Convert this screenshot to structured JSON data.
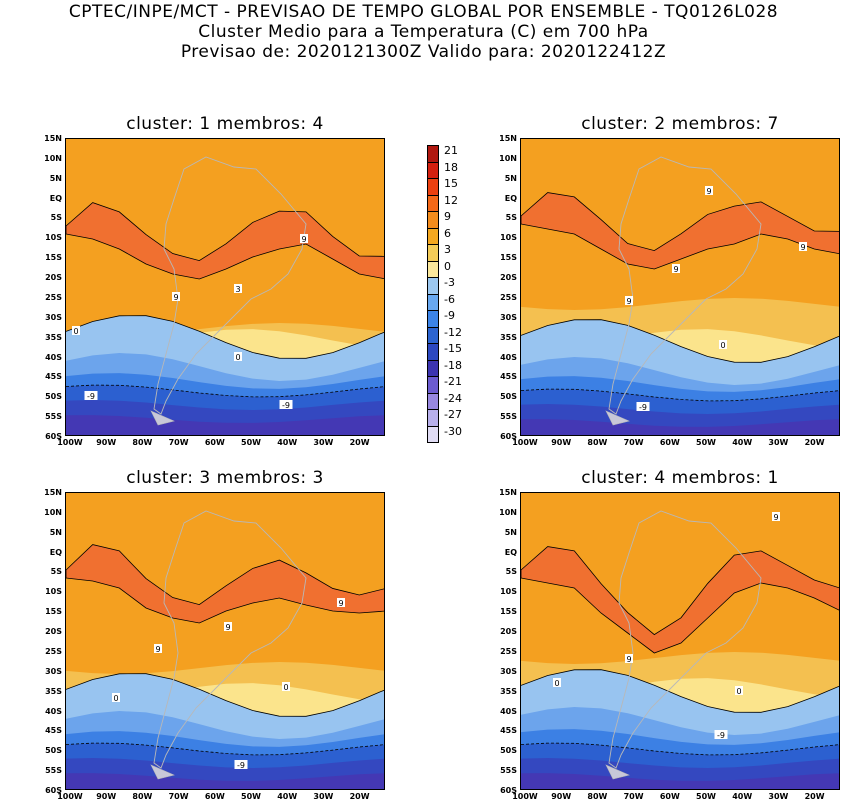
{
  "header": {
    "line1": "CPTEC/INPE/MCT - PREVISAO DE TEMPO GLOBAL POR ENSEMBLE - TQ0126L028",
    "line2": "Cluster Medio para a Temperatura (C) em 700 hPa",
    "line3": "Previsao de: 2020121300Z   Valido para: 2020122412Z"
  },
  "panels": [
    {
      "title": "cluster: 1   membros: 4",
      "labels": [
        "9",
        "9",
        "3",
        "0",
        "0",
        "-9",
        "-9"
      ]
    },
    {
      "title": "cluster: 2   membros: 7",
      "labels": [
        "9",
        "9",
        "9",
        "9",
        "0",
        "-9"
      ]
    },
    {
      "title": "cluster: 3   membros: 3",
      "labels": [
        "9",
        "9",
        "9",
        "0",
        "0",
        "-9"
      ]
    },
    {
      "title": "cluster: 4   membros: 1",
      "labels": [
        "9",
        "9",
        "0",
        "0",
        "-9"
      ]
    }
  ],
  "axes": {
    "lat_ticks": [
      "15N",
      "10N",
      "5N",
      "EQ",
      "5S",
      "10S",
      "15S",
      "20S",
      "25S",
      "30S",
      "35S",
      "40S",
      "45S",
      "50S",
      "55S",
      "60S"
    ],
    "lon_ticks": [
      "100W",
      "90W",
      "80W",
      "70W",
      "60W",
      "50W",
      "40W",
      "30W",
      "20W"
    ]
  },
  "colorbar": {
    "levels": [
      "21",
      "18",
      "15",
      "12",
      "9",
      "6",
      "3",
      "0",
      "-3",
      "-6",
      "-9",
      "-12",
      "-15",
      "-18",
      "-21",
      "-24",
      "-27",
      "-30"
    ],
    "colors": [
      "#b01810",
      "#d42010",
      "#ec4010",
      "#f46818",
      "#f48c1c",
      "#f4a820",
      "#f4cc58",
      "#fbe89c",
      "#9cc8f0",
      "#68a8f0",
      "#3c84e8",
      "#2c64d0",
      "#2c48c0",
      "#3c34b0",
      "#6c5cd0",
      "#9888e0",
      "#b8b0ec",
      "#e0dcf4"
    ]
  },
  "map_colors": {
    "t9": "#f07030",
    "t6": "#f4a020",
    "t3": "#f4c050",
    "t0": "#fbe48c",
    "tm3": "#98c4f0",
    "tm6": "#6ca4ec",
    "tm9": "#3c80e4",
    "tm12": "#2c60d0",
    "tm15": "#3448c0",
    "tm18": "#4438b4",
    "land": "#b8b8b8"
  }
}
